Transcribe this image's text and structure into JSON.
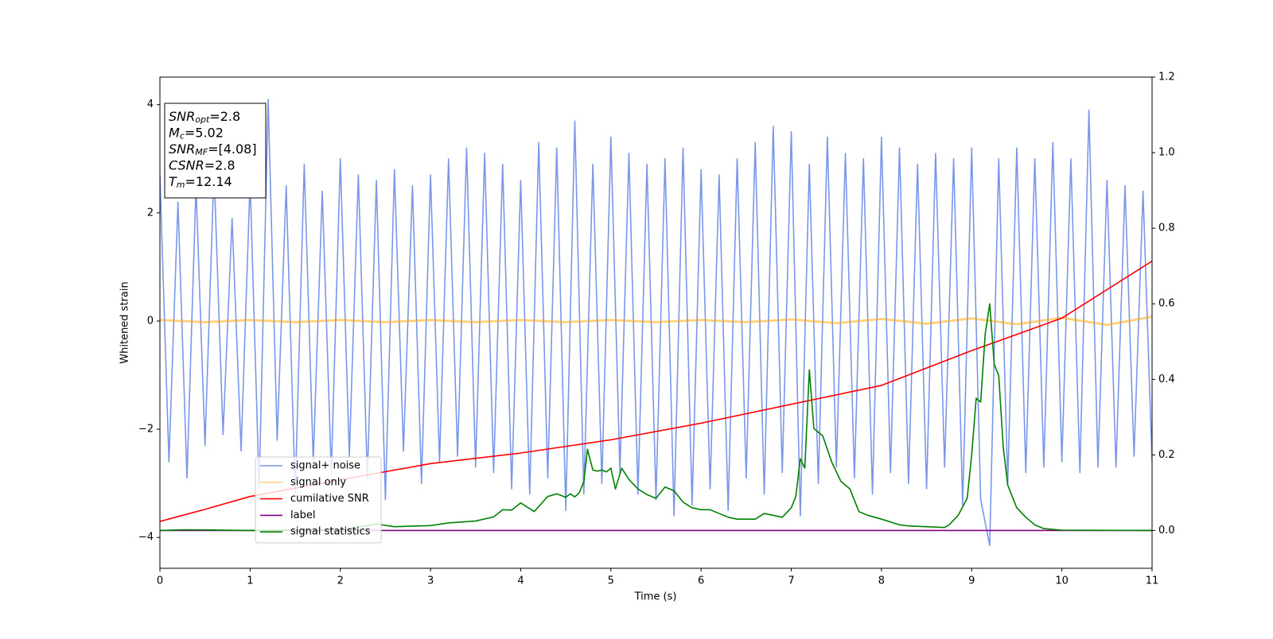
{
  "chart_data": {
    "type": "line",
    "xlabel": "Time (s)",
    "ylabel": "Whitened strain",
    "xlim": [
      0,
      11
    ],
    "xticks": [
      0,
      1,
      2,
      3,
      4,
      5,
      6,
      7,
      8,
      9,
      10,
      11
    ],
    "ylim": [
      -4.57,
      4.51
    ],
    "yticks": [
      {
        "value": -4,
        "label": "−4"
      },
      {
        "value": -2,
        "label": "−2"
      },
      0,
      2,
      4
    ],
    "y2lim": [
      -0.1,
      1.2
    ],
    "y2ticks": [
      {
        "value": 0,
        "label": "0.0"
      },
      0.2,
      0.4,
      0.6,
      0.8,
      {
        "value": 1,
        "label": "1.0"
      },
      1.2
    ],
    "annotation": [
      {
        "base": "SNR",
        "sub": "opt",
        "rest": "=2.8"
      },
      {
        "base": "M",
        "sub": "c",
        "rest": "=5.02"
      },
      {
        "base": "SNR",
        "sub": "MF",
        "rest": "=[4.08]"
      },
      {
        "base": "CSNR",
        "sub": "",
        "rest": "=2.8"
      },
      {
        "base": "T",
        "sub": "m",
        "rest": "=12.14"
      }
    ],
    "series": [
      {
        "name": "signal+ noise",
        "color": "#4169e1",
        "alpha": 0.7,
        "x": [
          0,
          0.1,
          0.2,
          0.3,
          0.4,
          0.5,
          0.6,
          0.7,
          0.8,
          0.9,
          1,
          1.1,
          1.2,
          1.3,
          1.4,
          1.5,
          1.6,
          1.7,
          1.8,
          1.9,
          2,
          2.1,
          2.2,
          2.3,
          2.4,
          2.5,
          2.6,
          2.7,
          2.8,
          2.9,
          3,
          3.1,
          3.2,
          3.3,
          3.4,
          3.5,
          3.6,
          3.7,
          3.8,
          3.9,
          4,
          4.1,
          4.2,
          4.3,
          4.4,
          4.5,
          4.6,
          4.7,
          4.8,
          4.9,
          5,
          5.1,
          5.2,
          5.3,
          5.4,
          5.5,
          5.6,
          5.7,
          5.8,
          5.9,
          6,
          6.1,
          6.2,
          6.3,
          6.4,
          6.5,
          6.6,
          6.7,
          6.8,
          6.9,
          7,
          7.1,
          7.2,
          7.3,
          7.4,
          7.5,
          7.6,
          7.7,
          7.8,
          7.9,
          8,
          8.1,
          8.2,
          8.3,
          8.4,
          8.5,
          8.6,
          8.7,
          8.8,
          8.9,
          9,
          9.1,
          9.2,
          9.3,
          9.4,
          9.5,
          9.6,
          9.7,
          9.8,
          9.9,
          10,
          10.1,
          10.2,
          10.3,
          10.4,
          10.5,
          10.6,
          10.7,
          10.8,
          10.9,
          11
        ],
        "values": [
          2.7,
          -2.6,
          2.2,
          -2.9,
          2.5,
          -2.3,
          2.8,
          -2.1,
          1.9,
          -2.4,
          2.6,
          -3.1,
          4.1,
          -2.2,
          2.5,
          -3.2,
          2.9,
          -2.6,
          2.4,
          -2.8,
          3.0,
          -2.5,
          2.7,
          -2.9,
          2.6,
          -3.3,
          2.8,
          -2.4,
          2.5,
          -3.0,
          2.7,
          -2.6,
          3.0,
          -2.5,
          3.2,
          -2.7,
          3.1,
          -2.8,
          2.9,
          -3.1,
          2.6,
          -3.2,
          3.3,
          -2.9,
          3.2,
          -3.5,
          3.7,
          -3.2,
          2.9,
          -3.0,
          3.4,
          -2.8,
          3.1,
          -3.2,
          2.9,
          -3.3,
          3.0,
          -3.6,
          3.2,
          -3.4,
          2.8,
          -3.1,
          2.7,
          -3.5,
          3.0,
          -2.9,
          3.3,
          -3.2,
          3.6,
          -2.8,
          3.5,
          -3.6,
          2.9,
          -3.0,
          3.4,
          -2.7,
          3.1,
          -2.9,
          3.0,
          -3.2,
          3.4,
          -2.8,
          3.2,
          -3.0,
          2.9,
          -3.1,
          3.1,
          -2.7,
          3.0,
          -3.4,
          3.2,
          -3.3,
          -4.15,
          3.0,
          -3.0,
          3.2,
          -2.8,
          3.0,
          -2.7,
          3.3,
          -2.6,
          3.0,
          -2.8,
          3.9,
          -2.7,
          2.6,
          -2.7,
          2.5,
          -2.5,
          2.4,
          -2.6
        ]
      },
      {
        "name": "signal only",
        "color": "#ffa500",
        "alpha": 0.5,
        "x": [
          0,
          0.5,
          1,
          1.5,
          2,
          2.5,
          3,
          3.5,
          4,
          4.5,
          5,
          5.5,
          6,
          6.5,
          7,
          7.5,
          8,
          8.5,
          9,
          9.5,
          10,
          10.5,
          11
        ],
        "values": [
          0.02,
          -0.02,
          0.02,
          -0.02,
          0.02,
          -0.02,
          0.02,
          -0.02,
          0.02,
          -0.02,
          0.02,
          -0.02,
          0.02,
          -0.02,
          0.03,
          -0.04,
          0.04,
          -0.05,
          0.05,
          -0.06,
          0.06,
          -0.07,
          0.08
        ]
      },
      {
        "name": "cumilative SNR",
        "color": "#ff0000",
        "axis": "y2",
        "x": [
          0,
          0.25,
          0.5,
          1,
          2,
          3,
          4,
          5,
          6,
          7,
          8,
          9,
          10,
          11
        ],
        "values": [
          0.024,
          0.04,
          0.056,
          0.09,
          0.134,
          0.177,
          0.205,
          0.24,
          0.284,
          0.334,
          0.384,
          0.476,
          0.562,
          0.713
        ]
      },
      {
        "name": "label",
        "color": "#800080",
        "axis": "y2",
        "x": [
          0,
          11
        ],
        "values": [
          0,
          0
        ]
      },
      {
        "name": "signal statistics",
        "color": "#008000",
        "axis": "y2",
        "x": [
          0,
          0.3,
          1,
          2,
          2.3,
          2.4,
          2.6,
          3,
          3.2,
          3.5,
          3.7,
          3.8,
          3.9,
          4,
          4.15,
          4.3,
          4.4,
          4.5,
          4.55,
          4.6,
          4.65,
          4.7,
          4.74,
          4.8,
          4.85,
          4.9,
          4.95,
          5,
          5.05,
          5.12,
          5.2,
          5.3,
          5.4,
          5.5,
          5.6,
          5.7,
          5.8,
          5.9,
          6,
          6.1,
          6.2,
          6.3,
          6.4,
          6.5,
          6.6,
          6.7,
          6.8,
          6.9,
          7,
          7.05,
          7.1,
          7.15,
          7.2,
          7.25,
          7.35,
          7.45,
          7.55,
          7.65,
          7.75,
          7.85,
          8,
          8.2,
          8.3,
          8.5,
          8.7,
          8.75,
          8.85,
          8.95,
          9,
          9.05,
          9.1,
          9.15,
          9.2,
          9.25,
          9.3,
          9.35,
          9.4,
          9.5,
          9.6,
          9.7,
          9.8,
          10,
          11
        ],
        "values": [
          0,
          0.002,
          0,
          0.002,
          0.013,
          0.017,
          0.01,
          0.013,
          0.02,
          0.025,
          0.036,
          0.055,
          0.054,
          0.073,
          0.05,
          0.09,
          0.097,
          0.088,
          0.097,
          0.089,
          0.1,
          0.13,
          0.215,
          0.16,
          0.157,
          0.16,
          0.155,
          0.165,
          0.11,
          0.165,
          0.135,
          0.11,
          0.095,
          0.085,
          0.115,
          0.105,
          0.075,
          0.06,
          0.055,
          0.055,
          0.045,
          0.035,
          0.03,
          0.03,
          0.03,
          0.045,
          0.04,
          0.035,
          0.06,
          0.09,
          0.19,
          0.165,
          0.425,
          0.27,
          0.25,
          0.18,
          0.13,
          0.11,
          0.05,
          0.04,
          0.03,
          0.015,
          0.012,
          0.01,
          0.008,
          0.015,
          0.04,
          0.085,
          0.2,
          0.35,
          0.34,
          0.52,
          0.6,
          0.44,
          0.41,
          0.22,
          0.12,
          0.06,
          0.035,
          0.015,
          0.005,
          0.001,
          0
        ]
      }
    ]
  }
}
